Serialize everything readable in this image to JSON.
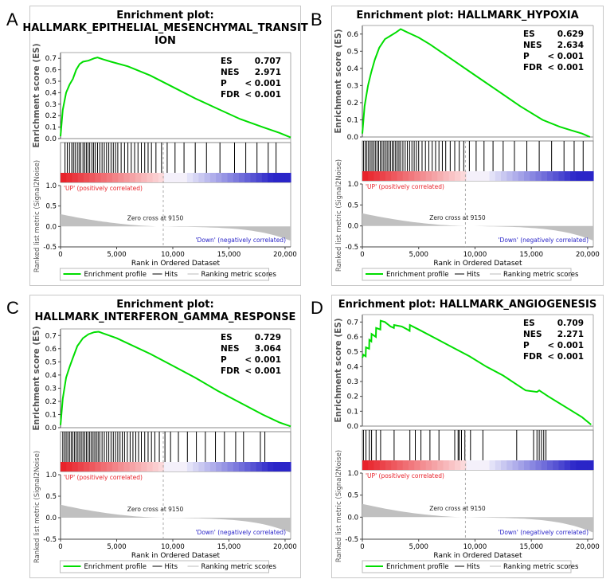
{
  "panels": [
    {
      "letter": "A",
      "title_lines": [
        "Enrichment plot:",
        "HALLMARK_EPITHELIAL_MESENCHYMAL_TRANSIT",
        "ION"
      ],
      "stats": [
        {
          "label": "ES",
          "value": "0.707"
        },
        {
          "label": "NES",
          "value": "2.971"
        },
        {
          "label": "P",
          "value": "< 0.001"
        },
        {
          "label": "FDR",
          "value": "< 0.001"
        }
      ]
    },
    {
      "letter": "B",
      "title_lines": [
        "Enrichment plot: HALLMARK_HYPOXIA"
      ],
      "stats": [
        {
          "label": "ES",
          "value": "0.629"
        },
        {
          "label": "NES",
          "value": "2.634"
        },
        {
          "label": "P",
          "value": "< 0.001"
        },
        {
          "label": "FDR",
          "value": "< 0.001"
        }
      ]
    },
    {
      "letter": "C",
      "title_lines": [
        "Enrichment plot:",
        "HALLMARK_INTERFERON_GAMMA_RESPONSE"
      ],
      "stats": [
        {
          "label": "ES",
          "value": "0.729"
        },
        {
          "label": "NES",
          "value": "3.064"
        },
        {
          "label": "P",
          "value": "< 0.001"
        },
        {
          "label": "FDR",
          "value": "< 0.001"
        }
      ]
    },
    {
      "letter": "D",
      "title_lines": [
        "Enrichment plot: HALLMARK_ANGIOGENESIS"
      ],
      "stats": [
        {
          "label": "ES",
          "value": "0.709"
        },
        {
          "label": "NES",
          "value": "2.271"
        },
        {
          "label": "P",
          "value": "< 0.001"
        },
        {
          "label": "FDR",
          "value": "< 0.001"
        }
      ]
    }
  ],
  "common": {
    "ylabel_es": "Enrichment score (ES)",
    "ylabel_rank": "Ranked list metric (Signal2Noise)",
    "xlabel": "Rank in Ordered Dataset",
    "up_label": "'UP' (positively correlated)",
    "down_label": "'Down' (negatively correlated)",
    "zero_cross": "Zero cross at 9150",
    "legend_profile": "Enrichment profile",
    "legend_hits": "Hits",
    "legend_ranking": "Ranking metric scores",
    "colors": {
      "profile": "#00dd00",
      "up": "#e8232b",
      "down": "#2a25c8",
      "hits": "#000000",
      "metric": "#c0c0c0"
    }
  },
  "chart_data": [
    {
      "type": "line",
      "title": "Enrichment plot: HALLMARK_EPITHELIAL_MESENCHYMAL_TRANSITION",
      "xlabel": "Rank in Ordered Dataset",
      "ylabel": "Enrichment score (ES)",
      "xlim": [
        0,
        20500
      ],
      "ylim": [
        0,
        0.75
      ],
      "x_ticks": [
        0,
        5000,
        10000,
        15000,
        20000
      ],
      "x_tick_labels": [
        "0",
        "5,000",
        "10,000",
        "15,000",
        "20,000"
      ],
      "y_ticks": [
        0.0,
        0.1,
        0.2,
        0.3,
        0.4,
        0.5,
        0.6,
        0.7
      ],
      "y_tick_labels": [
        "0.0",
        "0.1",
        "0.2",
        "0.3",
        "0.4",
        "0.5",
        "0.6",
        "0.7"
      ],
      "x": [
        0,
        200,
        500,
        800,
        1100,
        1400,
        1700,
        2000,
        2500,
        3000,
        3300,
        3800,
        4500,
        6000,
        8000,
        10000,
        12000,
        14000,
        16000,
        18000,
        19500,
        20500
      ],
      "es": [
        0.02,
        0.25,
        0.4,
        0.47,
        0.52,
        0.6,
        0.65,
        0.67,
        0.68,
        0.7,
        0.707,
        0.69,
        0.67,
        0.63,
        0.55,
        0.45,
        0.35,
        0.26,
        0.17,
        0.1,
        0.05,
        0.01
      ],
      "hits": [
        400,
        600,
        800,
        1000,
        1150,
        1300,
        1500,
        1650,
        1800,
        2000,
        2150,
        2300,
        2450,
        2600,
        2800,
        2950,
        3100,
        3300,
        3500,
        3700,
        3900,
        4100,
        4300,
        4500,
        4700,
        4900,
        5100,
        5400,
        5700,
        6000,
        6300,
        6600,
        6900,
        7200,
        7500,
        7800,
        8100,
        8500,
        9000,
        9500,
        10200,
        11000,
        12000,
        13000,
        14200,
        15500,
        16500,
        17500,
        18500,
        19200
      ],
      "rank_ylim": [
        -0.5,
        1.0
      ],
      "rank_y_ticks": [
        -0.5,
        0.0,
        0.5,
        1.0
      ],
      "rank_y_tick_labels": [
        "-0.5",
        "0.0",
        "0.5",
        "1.0"
      ],
      "zero_cross": 9150
    },
    {
      "type": "line",
      "title": "Enrichment plot: HALLMARK_HYPOXIA",
      "xlabel": "Rank in Ordered Dataset",
      "ylabel": "Enrichment score (ES)",
      "xlim": [
        0,
        20500
      ],
      "ylim": [
        0,
        0.65
      ],
      "x_ticks": [
        0,
        5000,
        10000,
        15000,
        20000
      ],
      "x_tick_labels": [
        "0",
        "5,000",
        "10,000",
        "15,000",
        "20,000"
      ],
      "y_ticks": [
        0.0,
        0.1,
        0.2,
        0.3,
        0.4,
        0.5,
        0.6
      ],
      "y_tick_labels": [
        "0.0",
        "0.1",
        "0.2",
        "0.3",
        "0.4",
        "0.5",
        "0.6"
      ],
      "x": [
        0,
        200,
        500,
        800,
        1100,
        1500,
        2000,
        2500,
        3000,
        3400,
        4000,
        5000,
        6000,
        8000,
        10000,
        12000,
        14000,
        16000,
        17500,
        18500,
        19500,
        20200
      ],
      "es": [
        0.02,
        0.18,
        0.3,
        0.38,
        0.45,
        0.52,
        0.57,
        0.59,
        0.61,
        0.629,
        0.61,
        0.58,
        0.54,
        0.45,
        0.36,
        0.27,
        0.18,
        0.1,
        0.06,
        0.04,
        0.02,
        0.0
      ],
      "hits": [
        100,
        250,
        400,
        550,
        700,
        850,
        1000,
        1150,
        1300,
        1450,
        1600,
        1750,
        1900,
        2050,
        2200,
        2350,
        2500,
        2650,
        2800,
        2950,
        3100,
        3250,
        3400,
        3600,
        3800,
        4000,
        4200,
        4400,
        4600,
        4800,
        5000,
        5300,
        5600,
        5900,
        6200,
        6500,
        6800,
        7100,
        7400,
        7800,
        8200,
        8600,
        9000,
        9500,
        10100,
        10800,
        11600,
        12500,
        13500,
        14600,
        15700,
        16800,
        17900,
        18800,
        19600
      ],
      "rank_ylim": [
        -0.5,
        1.0
      ],
      "rank_y_ticks": [
        -0.5,
        0.0,
        0.5,
        1.0
      ],
      "rank_y_tick_labels": [
        "-0.5",
        "0.0",
        "0.5",
        "1.0"
      ],
      "zero_cross": 9150
    },
    {
      "type": "line",
      "title": "Enrichment plot: HALLMARK_INTERFERON_GAMMA_RESPONSE",
      "xlabel": "Rank in Ordered Dataset",
      "ylabel": "Enrichment score (ES)",
      "xlim": [
        0,
        20500
      ],
      "ylim": [
        0,
        0.75
      ],
      "x_ticks": [
        0,
        5000,
        10000,
        15000,
        20000
      ],
      "x_tick_labels": [
        "0",
        "5,000",
        "10,000",
        "15,000",
        "20,000"
      ],
      "y_ticks": [
        0.0,
        0.1,
        0.2,
        0.3,
        0.4,
        0.5,
        0.6,
        0.7
      ],
      "y_tick_labels": [
        "0.0",
        "0.1",
        "0.2",
        "0.3",
        "0.4",
        "0.5",
        "0.6",
        "0.7"
      ],
      "x": [
        0,
        200,
        500,
        800,
        1100,
        1500,
        2000,
        2500,
        3000,
        3400,
        4000,
        5000,
        6000,
        8000,
        10000,
        12000,
        14000,
        16000,
        18000,
        19500,
        20500
      ],
      "es": [
        0.02,
        0.22,
        0.38,
        0.46,
        0.53,
        0.62,
        0.68,
        0.71,
        0.725,
        0.729,
        0.71,
        0.68,
        0.64,
        0.56,
        0.47,
        0.38,
        0.28,
        0.19,
        0.1,
        0.04,
        0.01
      ],
      "hits": [
        200,
        350,
        500,
        650,
        800,
        950,
        1100,
        1250,
        1400,
        1550,
        1700,
        1850,
        2000,
        2150,
        2300,
        2450,
        2600,
        2750,
        2900,
        3050,
        3200,
        3350,
        3500,
        3700,
        3900,
        4100,
        4300,
        4500,
        4700,
        4900,
        5100,
        5300,
        5500,
        5700,
        5950,
        6200,
        6450,
        6700,
        6950,
        7200,
        7500,
        7800,
        8100,
        8400,
        8800,
        9300,
        9800,
        10500,
        11300,
        12100,
        12900,
        13800,
        14600,
        15600,
        16300,
        17800,
        18200
      ],
      "rank_ylim": [
        -0.5,
        1.0
      ],
      "rank_y_ticks": [
        -0.5,
        0.0,
        0.5,
        1.0
      ],
      "rank_y_tick_labels": [
        "-0.5",
        "0.0",
        "0.5",
        "1.0"
      ],
      "zero_cross": 9150
    },
    {
      "type": "line",
      "title": "Enrichment plot: HALLMARK_ANGIOGENESIS",
      "xlabel": "Rank in Ordered Dataset",
      "ylabel": "Enrichment score (ES)",
      "xlim": [
        0,
        20500
      ],
      "ylim": [
        0,
        0.75
      ],
      "x_ticks": [
        0,
        5000,
        10000,
        15000,
        20000
      ],
      "x_tick_labels": [
        "0",
        "5,000",
        "10,000",
        "15,000",
        "20,000"
      ],
      "y_ticks": [
        0.0,
        0.1,
        0.2,
        0.3,
        0.4,
        0.5,
        0.6,
        0.7
      ],
      "y_tick_labels": [
        "0.0",
        "0.1",
        "0.2",
        "0.3",
        "0.4",
        "0.5",
        "0.6",
        "0.7"
      ],
      "x": [
        0,
        100,
        300,
        320,
        600,
        620,
        800,
        820,
        1200,
        1220,
        1600,
        1620,
        2000,
        2500,
        2800,
        2820,
        3500,
        4000,
        4200,
        4220,
        5000,
        6500,
        8000,
        9500,
        11000,
        12500,
        13500,
        14500,
        15500,
        15700,
        16500,
        18000,
        19500,
        20300
      ],
      "es": [
        0.46,
        0.48,
        0.47,
        0.53,
        0.52,
        0.58,
        0.57,
        0.62,
        0.6,
        0.66,
        0.65,
        0.709,
        0.7,
        0.67,
        0.66,
        0.68,
        0.67,
        0.65,
        0.64,
        0.68,
        0.65,
        0.59,
        0.53,
        0.47,
        0.4,
        0.34,
        0.29,
        0.24,
        0.23,
        0.24,
        0.2,
        0.13,
        0.06,
        0.01
      ],
      "hits": [
        100,
        320,
        620,
        820,
        1220,
        1620,
        2820,
        4220,
        4700,
        5200,
        6000,
        6800,
        8200,
        8500,
        8600,
        8800,
        9100,
        9600,
        10700,
        13700,
        15200,
        15500,
        15700,
        15900,
        16100,
        16300
      ],
      "rank_ylim": [
        -0.5,
        1.0
      ],
      "rank_y_ticks": [
        -0.5,
        0.0,
        0.5,
        1.0
      ],
      "rank_y_tick_labels": [
        "-0.5",
        "0.0",
        "0.5",
        "1.0"
      ],
      "zero_cross": 9150
    }
  ]
}
